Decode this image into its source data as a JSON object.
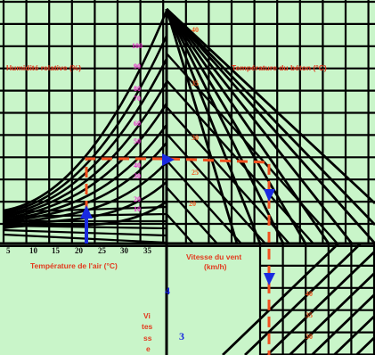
{
  "colors": {
    "background": "#c9f5c9",
    "grid": "#000000",
    "curve": "#000000",
    "label_red": "#e23a1e",
    "label_magenta": "#ee2fd0",
    "label_orange": "#f25a1e",
    "path_dashed": "#f2511e",
    "arrow_blue": "#1a2ae0"
  },
  "labels": {
    "humidity_title": "Humidité relative (%)",
    "concrete_temp_title": "Température du béton (°C)",
    "air_temp_title": "Température de l'air (°C)",
    "wind_speed_title_line1": "Vitesse du vent",
    "wind_speed_title_line2": "(km/h)",
    "vertical_label": [
      "Vi",
      "tes",
      "ss",
      "e"
    ],
    "blue_4": "4",
    "blue_3": "3"
  },
  "air_temp_ticks": [
    "5",
    "10",
    "15",
    "20",
    "25",
    "30",
    "35"
  ],
  "humidity_ticks": [
    "100",
    "90",
    "80",
    "70",
    "60",
    "50",
    "40",
    "30",
    "20",
    "10"
  ],
  "concrete_temp_ticks": [
    "40",
    "35",
    "30",
    "25",
    "20"
  ],
  "wind_ticks": [
    "40",
    "35",
    "30"
  ],
  "chart_data": {
    "type": "nomogram",
    "air_temperature_ticks": [
      5,
      10,
      15,
      20,
      25,
      30,
      35
    ],
    "relative_humidity_curves": [
      100,
      90,
      80,
      70,
      60,
      50,
      40,
      30,
      20,
      10
    ],
    "concrete_temperature_lines": [
      40,
      35,
      30,
      25,
      20
    ],
    "wind_speed_lines": [
      40,
      35,
      30
    ],
    "example_air_temperature": 22,
    "example_path": "air temperature → relative humidity curve → concrete temperature line → wind speed"
  }
}
